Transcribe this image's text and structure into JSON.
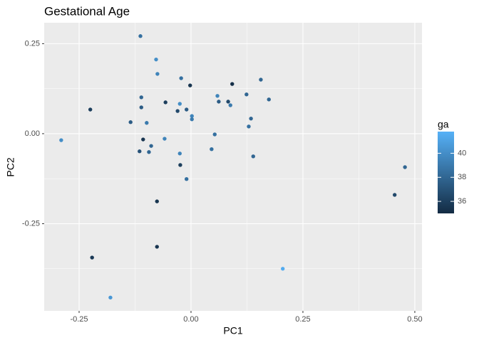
{
  "chart_data": {
    "type": "scatter",
    "title": "Gestational Age",
    "xlabel": "PC1",
    "ylabel": "PC2",
    "x": [
      -0.113,
      -0.078,
      -0.075,
      -0.022,
      -0.002,
      0.092,
      0.156,
      0.124,
      0.174,
      0.059,
      -0.111,
      -0.225,
      -0.111,
      -0.057,
      -0.025,
      -0.03,
      -0.01,
      0.002,
      0.002,
      0.062,
      0.083,
      0.088,
      0.134,
      0.129,
      -0.135,
      -0.099,
      -0.29,
      -0.107,
      -0.059,
      0.053,
      -0.089,
      -0.115,
      -0.094,
      0.046,
      -0.025,
      0.139,
      -0.024,
      0.478,
      -0.01,
      0.455,
      -0.076,
      -0.076,
      -0.221,
      0.205,
      -0.18
    ],
    "y": [
      0.271,
      0.206,
      0.166,
      0.154,
      0.134,
      0.138,
      0.15,
      0.109,
      0.095,
      0.105,
      0.101,
      0.067,
      0.073,
      0.087,
      0.083,
      0.063,
      0.067,
      0.049,
      0.04,
      0.089,
      0.089,
      0.079,
      0.042,
      0.02,
      0.032,
      0.03,
      -0.018,
      -0.016,
      -0.014,
      -0.002,
      -0.034,
      -0.049,
      -0.051,
      -0.043,
      -0.055,
      -0.063,
      -0.087,
      -0.093,
      -0.126,
      -0.17,
      -0.188,
      -0.314,
      -0.344,
      -0.375,
      -0.455
    ],
    "ga": [
      38.5,
      40,
      39.5,
      38.5,
      35.5,
      35.2,
      38,
      38,
      38,
      39.5,
      38,
      36,
      37.5,
      36,
      40,
      36.5,
      37.5,
      39.5,
      39,
      37.5,
      36.5,
      39,
      38,
      38.5,
      37.5,
      39,
      40,
      35.5,
      39.5,
      38.5,
      38,
      37,
      38,
      38.5,
      39.5,
      38,
      36,
      38,
      38.5,
      36.5,
      35.5,
      35.5,
      35.7,
      41.5,
      40.5
    ],
    "xlim": [
      -0.328,
      0.516
    ],
    "ylim": [
      -0.492,
      0.308
    ],
    "xticks": [
      -0.25,
      {
        "value": 0,
        "label": "0.00"
      },
      0.25,
      {
        "value": 0.5,
        "label": "0.50"
      }
    ],
    "yticks": [
      -0.25,
      {
        "value": 0,
        "label": "0.00"
      },
      0.25
    ],
    "x_minor_ticks": [
      -0.125,
      0.125,
      0.375
    ],
    "y_minor_ticks": [
      -0.375,
      -0.125,
      0.125
    ],
    "grid": true,
    "colorbar": {
      "title": "ga",
      "lim": [
        35,
        41.8
      ],
      "ticks": [
        36,
        38,
        40
      ],
      "low": "#132B43",
      "high": "#56B1F7"
    }
  }
}
